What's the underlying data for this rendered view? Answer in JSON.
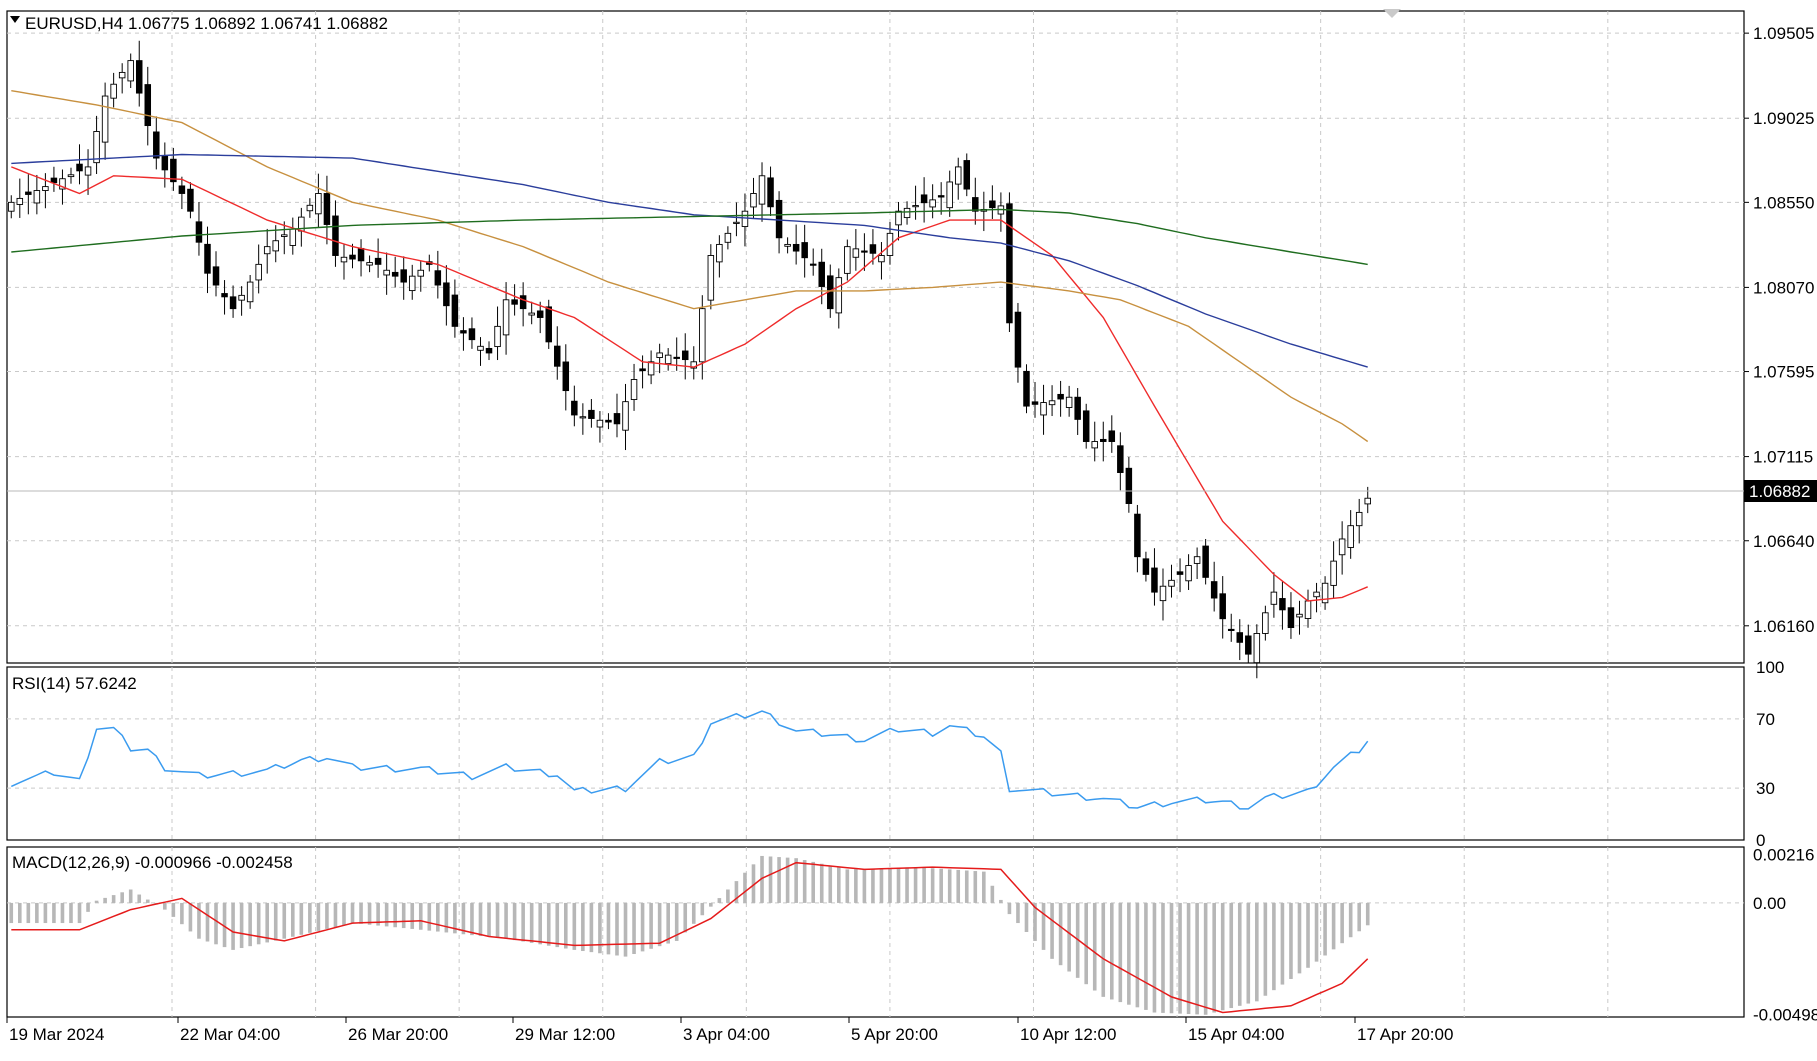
{
  "window": {
    "symbol_header": "EURUSD,H4",
    "open": "1.06775",
    "high": "1.06892",
    "low": "1.06741",
    "close": "1.06882",
    "menu_arrow_icon": "triangle-down-icon"
  },
  "colors": {
    "bull_candle": "#ffffff",
    "bear_candle": "#000000",
    "ma_fast": "#ef2b2b",
    "ma_mid": "#c7903f",
    "ma_slow_blue": "#2b3e9c",
    "ma_slow_green": "#1f6d1f",
    "rsi_line": "#3a9bef",
    "macd_hist": "#b7b7b7",
    "macd_signal": "#e51b1b",
    "grid": "#c9c9c9"
  },
  "chart_data": [
    {
      "type": "candlestick",
      "title": "EURUSD,H4 1.06775 1.06892 1.06741 1.06882",
      "price_labels": [
        "1.09505",
        "1.09025",
        "1.08550",
        "1.08070",
        "1.07595",
        "1.07115",
        "1.06640",
        "1.06160"
      ],
      "current_price_label": "1.06882",
      "ylim": [
        1.0595,
        1.0963
      ],
      "time_labels": [
        "19 Mar 2024",
        "22 Mar 04:00",
        "26 Mar 20:00",
        "29 Mar 12:00",
        "3 Apr 04:00",
        "5 Apr 20:00",
        "10 Apr 12:00",
        "15 Apr 04:00",
        "17 Apr 20:00"
      ],
      "bars_count": 160,
      "ohlc_keypoints": [
        [
          0,
          1.0855
        ],
        [
          9,
          1.0875
        ],
        [
          11,
          1.0915
        ],
        [
          14,
          1.0935
        ],
        [
          17,
          1.088
        ],
        [
          20,
          1.086
        ],
        [
          21,
          1.085
        ],
        [
          23,
          1.0815
        ],
        [
          26,
          1.0795
        ],
        [
          28,
          1.081
        ],
        [
          30,
          1.083
        ],
        [
          33,
          1.084
        ],
        [
          36,
          1.086
        ],
        [
          38,
          1.0825
        ],
        [
          43,
          1.082
        ],
        [
          46,
          1.081
        ],
        [
          49,
          1.082
        ],
        [
          52,
          1.0785
        ],
        [
          56,
          1.077
        ],
        [
          58,
          1.08
        ],
        [
          62,
          1.079
        ],
        [
          66,
          1.0735
        ],
        [
          71,
          1.073
        ],
        [
          73,
          1.0755
        ],
        [
          76,
          1.077
        ],
        [
          80,
          1.0765
        ],
        [
          82,
          1.0825
        ],
        [
          86,
          1.085
        ],
        [
          88,
          1.087
        ],
        [
          90,
          1.0835
        ],
        [
          94,
          1.082
        ],
        [
          96,
          1.0795
        ],
        [
          98,
          1.083
        ],
        [
          102,
          1.0825
        ],
        [
          104,
          1.085
        ],
        [
          109,
          1.0858
        ],
        [
          111,
          1.0875
        ],
        [
          113,
          1.085
        ],
        [
          116,
          1.0853
        ],
        [
          117,
          1.0787
        ],
        [
          118,
          1.0762
        ],
        [
          119,
          1.074
        ],
        [
          124,
          1.0745
        ],
        [
          126,
          1.072
        ],
        [
          129,
          1.072
        ],
        [
          131,
          1.0685
        ],
        [
          132,
          1.0655
        ],
        [
          134,
          1.0635
        ],
        [
          137,
          1.0645
        ],
        [
          139,
          1.0655
        ],
        [
          142,
          1.062
        ],
        [
          145,
          1.06
        ],
        [
          148,
          1.0635
        ],
        [
          150,
          1.0615
        ],
        [
          152,
          1.063
        ],
        [
          154,
          1.064
        ],
        [
          156,
          1.0665
        ],
        [
          158,
          1.068
        ],
        [
          159,
          1.0688
        ]
      ],
      "moving_averages": [
        {
          "color": "#ef2b2b",
          "points": [
            [
              0,
              1.0875
            ],
            [
              8,
              1.086
            ],
            [
              12,
              1.087
            ],
            [
              20,
              1.0868
            ],
            [
              30,
              1.0845
            ],
            [
              40,
              1.083
            ],
            [
              50,
              1.082
            ],
            [
              60,
              1.08
            ],
            [
              66,
              1.079
            ],
            [
              74,
              1.0765
            ],
            [
              80,
              1.0762
            ],
            [
              86,
              1.0775
            ],
            [
              92,
              1.0795
            ],
            [
              98,
              1.081
            ],
            [
              104,
              1.0835
            ],
            [
              110,
              1.0845
            ],
            [
              116,
              1.0845
            ],
            [
              122,
              1.0825
            ],
            [
              128,
              1.079
            ],
            [
              134,
              1.074
            ],
            [
              142,
              1.0675
            ],
            [
              148,
              1.0645
            ],
            [
              152,
              1.063
            ],
            [
              156,
              1.0632
            ],
            [
              159,
              1.0638
            ]
          ]
        },
        {
          "color": "#c7903f",
          "points": [
            [
              0,
              1.0918
            ],
            [
              10,
              1.091
            ],
            [
              20,
              1.09
            ],
            [
              30,
              1.0875
            ],
            [
              40,
              1.0855
            ],
            [
              50,
              1.0845
            ],
            [
              60,
              1.083
            ],
            [
              70,
              1.081
            ],
            [
              80,
              1.0795
            ],
            [
              86,
              1.08
            ],
            [
              92,
              1.0805
            ],
            [
              100,
              1.0805
            ],
            [
              108,
              1.0807
            ],
            [
              116,
              1.081
            ],
            [
              124,
              1.0805
            ],
            [
              130,
              1.08
            ],
            [
              138,
              1.0785
            ],
            [
              144,
              1.0765
            ],
            [
              150,
              1.0745
            ],
            [
              156,
              1.073
            ],
            [
              159,
              1.072
            ]
          ]
        },
        {
          "color": "#2b3e9c",
          "points": [
            [
              0,
              1.0877
            ],
            [
              20,
              1.0882
            ],
            [
              40,
              1.088
            ],
            [
              60,
              1.0865
            ],
            [
              70,
              1.0855
            ],
            [
              80,
              1.0848
            ],
            [
              90,
              1.0845
            ],
            [
              100,
              1.0842
            ],
            [
              110,
              1.0835
            ],
            [
              116,
              1.0832
            ],
            [
              124,
              1.0822
            ],
            [
              132,
              1.0808
            ],
            [
              140,
              1.0792
            ],
            [
              150,
              1.0775
            ],
            [
              159,
              1.0762
            ]
          ]
        },
        {
          "color": "#1f6d1f",
          "points": [
            [
              0,
              1.0827
            ],
            [
              20,
              1.0836
            ],
            [
              40,
              1.0842
            ],
            [
              60,
              1.0845
            ],
            [
              80,
              1.0847
            ],
            [
              100,
              1.0849
            ],
            [
              116,
              1.0851
            ],
            [
              124,
              1.0849
            ],
            [
              132,
              1.0843
            ],
            [
              140,
              1.0835
            ],
            [
              150,
              1.0827
            ],
            [
              159,
              1.082
            ]
          ]
        }
      ]
    },
    {
      "type": "line",
      "title": "RSI(14) 57.6242",
      "ylim": [
        0,
        100
      ],
      "levels": [
        "100",
        "70",
        "30",
        "0"
      ],
      "values_keypoints": [
        [
          0,
          33
        ],
        [
          5,
          39
        ],
        [
          8,
          34
        ],
        [
          10,
          65
        ],
        [
          12,
          64
        ],
        [
          14,
          53
        ],
        [
          16,
          52
        ],
        [
          18,
          42
        ],
        [
          22,
          37
        ],
        [
          30,
          40
        ],
        [
          34,
          46
        ],
        [
          37,
          48
        ],
        [
          40,
          42
        ],
        [
          48,
          41
        ],
        [
          54,
          37
        ],
        [
          58,
          42
        ],
        [
          64,
          38
        ],
        [
          66,
          28
        ],
        [
          72,
          30
        ],
        [
          76,
          45
        ],
        [
          80,
          48
        ],
        [
          82,
          68
        ],
        [
          86,
          72
        ],
        [
          88,
          74
        ],
        [
          92,
          63
        ],
        [
          96,
          61
        ],
        [
          100,
          58
        ],
        [
          104,
          64
        ],
        [
          108,
          62
        ],
        [
          110,
          66
        ],
        [
          114,
          60
        ],
        [
          116,
          50
        ],
        [
          117,
          30
        ],
        [
          122,
          27
        ],
        [
          128,
          24
        ],
        [
          132,
          19
        ],
        [
          136,
          22
        ],
        [
          140,
          23
        ],
        [
          142,
          22
        ],
        [
          145,
          19
        ],
        [
          147,
          24
        ],
        [
          152,
          28
        ],
        [
          155,
          42
        ],
        [
          158,
          52
        ],
        [
          159,
          57.6242
        ]
      ]
    },
    {
      "type": "bar",
      "title": "MACD(12,26,9) -0.000966 -0.002458",
      "ylim": [
        -0.0051,
        0.0025
      ],
      "tick_labels": [
        "0.00216",
        "0.00",
        "-0.00498"
      ],
      "histogram_keypoints": [
        [
          0,
          -0.0009
        ],
        [
          8,
          -0.0009
        ],
        [
          10,
          0.0001
        ],
        [
          14,
          0.0006
        ],
        [
          18,
          -0.0003
        ],
        [
          22,
          -0.0016
        ],
        [
          26,
          -0.0021
        ],
        [
          32,
          -0.0016
        ],
        [
          40,
          -0.0009
        ],
        [
          48,
          -0.0012
        ],
        [
          58,
          -0.0016
        ],
        [
          66,
          -0.0021
        ],
        [
          72,
          -0.0024
        ],
        [
          78,
          -0.0017
        ],
        [
          84,
          0.0006
        ],
        [
          88,
          0.0021
        ],
        [
          92,
          0.002
        ],
        [
          98,
          0.0015
        ],
        [
          106,
          0.0016
        ],
        [
          114,
          0.0014
        ],
        [
          117,
          -0.0005
        ],
        [
          122,
          -0.0025
        ],
        [
          128,
          -0.0042
        ],
        [
          134,
          -0.0049
        ],
        [
          140,
          -0.005
        ],
        [
          146,
          -0.0044
        ],
        [
          152,
          -0.0029
        ],
        [
          156,
          -0.0018
        ],
        [
          159,
          -0.001
        ]
      ],
      "signal_keypoints": [
        [
          0,
          -0.0012
        ],
        [
          8,
          -0.0012
        ],
        [
          14,
          -0.0003
        ],
        [
          20,
          0.0002
        ],
        [
          26,
          -0.0013
        ],
        [
          32,
          -0.0017
        ],
        [
          40,
          -0.0009
        ],
        [
          48,
          -0.0008
        ],
        [
          56,
          -0.0015
        ],
        [
          66,
          -0.0019
        ],
        [
          76,
          -0.0018
        ],
        [
          82,
          -0.0007
        ],
        [
          88,
          0.0011
        ],
        [
          92,
          0.0018
        ],
        [
          100,
          0.0015
        ],
        [
          108,
          0.0016
        ],
        [
          116,
          0.0015
        ],
        [
          120,
          -0.0002
        ],
        [
          128,
          -0.0025
        ],
        [
          136,
          -0.0042
        ],
        [
          142,
          -0.0049
        ],
        [
          150,
          -0.0046
        ],
        [
          156,
          -0.0036
        ],
        [
          159,
          -0.0025
        ]
      ]
    }
  ]
}
